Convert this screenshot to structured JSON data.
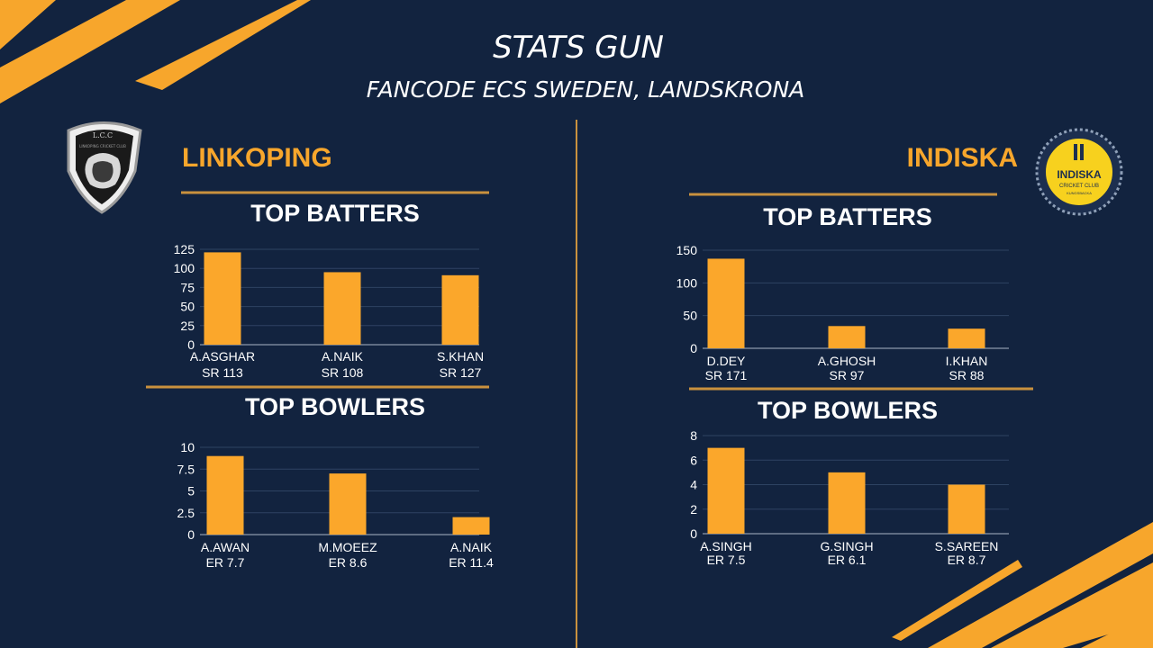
{
  "header": {
    "title": "STATS GUN",
    "subtitle": "FANCODE ECS SWEDEN, LANDSKRONA"
  },
  "colors": {
    "background": "#12233f",
    "accent": "#f7a62c",
    "bar": "#fba72b",
    "text": "#ffffff"
  },
  "teams": [
    {
      "name": "LINKOPING",
      "logo_icon": "lion-shield-logo-icon",
      "logo_text": "L.C.C",
      "logo_subtext": "LINKOPING CRICKET CLUB"
    },
    {
      "name": "INDISKA",
      "logo_icon": "indiska-cricket-club-logo-icon",
      "logo_text": "INDISKA",
      "logo_subtext": "CRICKET CLUB",
      "logo_subtext2": "KUNGSBACKA"
    }
  ],
  "chart_data": [
    {
      "type": "bar",
      "team": "LINKOPING",
      "title": "TOP BATTERS",
      "categories": [
        "A.ASGHAR",
        "A.NAIK",
        "S.KHAN"
      ],
      "sublabels": [
        "SR 113",
        "SR 108",
        "SR 127"
      ],
      "values": [
        121,
        95,
        91
      ],
      "yticks": [
        0,
        25,
        50,
        75,
        100,
        125
      ],
      "ylim": [
        0,
        125
      ],
      "grid": true
    },
    {
      "type": "bar",
      "team": "LINKOPING",
      "title": "TOP BOWLERS",
      "categories": [
        "A.AWAN",
        "M.MOEEZ",
        "A.NAIK"
      ],
      "sublabels": [
        "ER 7.7",
        "ER 8.6",
        "ER 11.4"
      ],
      "values": [
        9,
        7,
        2
      ],
      "yticks": [
        0,
        2.5,
        5,
        7.5,
        10
      ],
      "ylim": [
        0,
        10
      ],
      "grid": true
    },
    {
      "type": "bar",
      "team": "INDISKA",
      "title": "TOP BATTERS",
      "categories": [
        "D.DEY",
        "A.GHOSH",
        "I.KHAN"
      ],
      "sublabels": [
        "SR 171",
        "SR 97",
        "SR 88"
      ],
      "values": [
        137,
        34,
        30
      ],
      "yticks": [
        0,
        50,
        100,
        150
      ],
      "ylim": [
        0,
        150
      ],
      "grid": true
    },
    {
      "type": "bar",
      "team": "INDISKA",
      "title": "TOP BOWLERS",
      "categories": [
        "A.SINGH",
        "G.SINGH",
        "S.SAREEN"
      ],
      "sublabels": [
        "ER 7.5",
        "ER 6.1",
        "ER 8.7"
      ],
      "values": [
        7,
        5,
        4
      ],
      "yticks": [
        0,
        2,
        4,
        6,
        8
      ],
      "ylim": [
        0,
        8
      ],
      "grid": true
    }
  ]
}
